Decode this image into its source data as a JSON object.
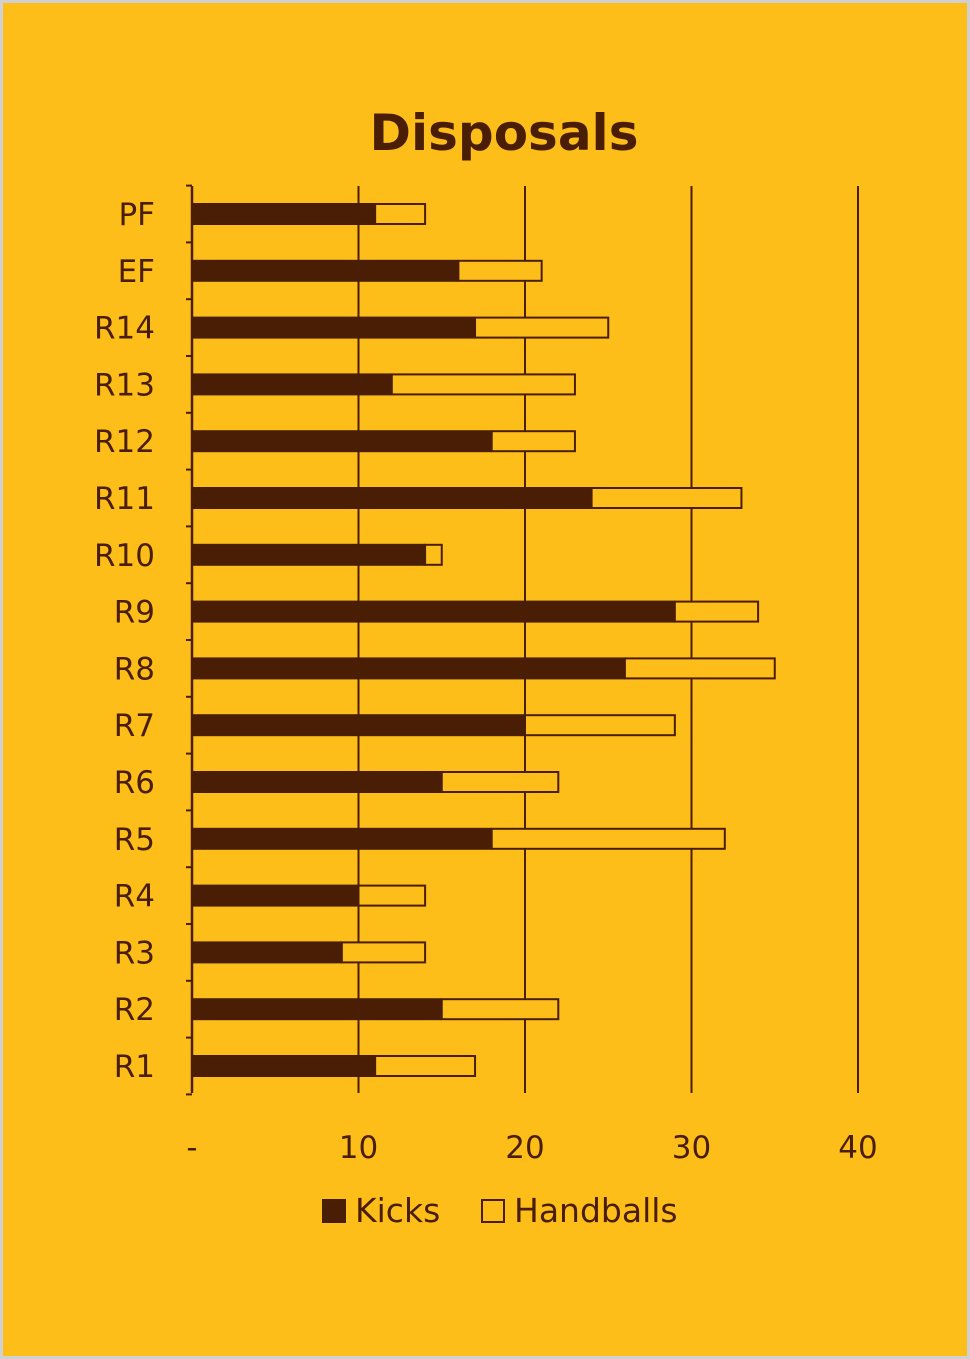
{
  "colors": {
    "background": "#FDBE1A",
    "kicks": "#4A1E05",
    "handballs": "#FDBE1A",
    "stroke": "#4A1E05",
    "outer_border": "#D0D0D0"
  },
  "chart_data": {
    "type": "bar",
    "orientation": "horizontal",
    "stacked": true,
    "title": "Disposals",
    "categories": [
      "R1",
      "R2",
      "R3",
      "R4",
      "R5",
      "R6",
      "R7",
      "R8",
      "R9",
      "R10",
      "R11",
      "R12",
      "R13",
      "R14",
      "EF",
      "PF"
    ],
    "series": [
      {
        "name": "Kicks",
        "values": [
          11,
          15,
          9,
          10,
          18,
          15,
          20,
          26,
          29,
          14,
          24,
          18,
          12,
          17,
          16,
          11
        ]
      },
      {
        "name": "Handballs",
        "values": [
          6,
          7,
          5,
          4,
          14,
          7,
          9,
          9,
          5,
          1,
          9,
          5,
          11,
          8,
          5,
          3
        ]
      }
    ],
    "xlim": [
      0,
      40
    ],
    "x_ticks": [
      0,
      10,
      20,
      30,
      40
    ],
    "x_tick_labels": [
      "-",
      "10",
      "20",
      "30",
      "40"
    ],
    "grid": "vertical",
    "legend": "bottom"
  }
}
